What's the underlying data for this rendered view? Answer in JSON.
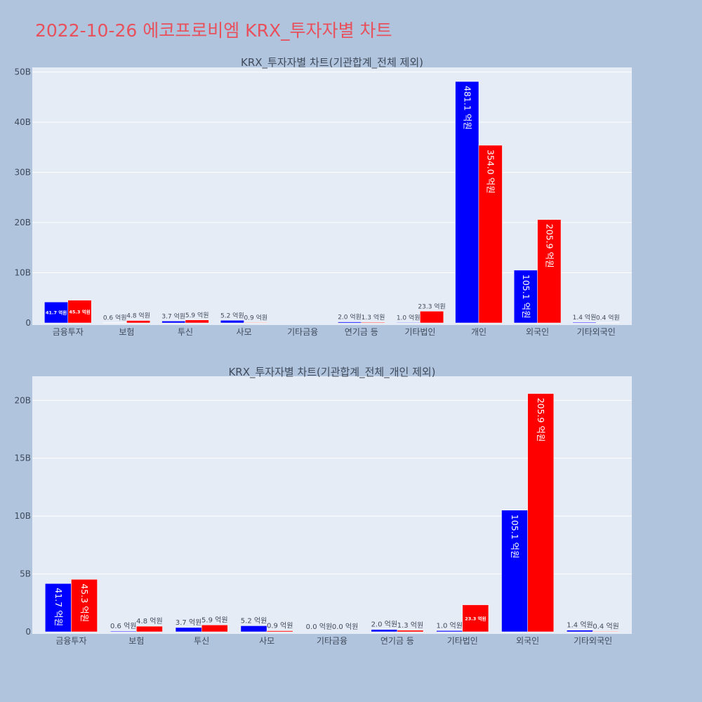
{
  "page": {
    "title": "2022-10-26 에코프로비엠 KRX_투자자별 차트",
    "title_color": "#e8505b",
    "background": "#b0c4de",
    "plot_background": "#e5ecf6"
  },
  "chart_data": [
    {
      "type": "bar",
      "title": "KRX_투자자별 차트(기관합계_전체 제외)",
      "categories": [
        "금융투자",
        "보험",
        "투신",
        "사모",
        "기타금융",
        "연기금 등",
        "기타법인",
        "개인",
        "외국인",
        "기타외국인"
      ],
      "y_ticks": [
        "0",
        "10B",
        "20B",
        "30B",
        "40B",
        "50B"
      ],
      "ylim": [
        0,
        50.5
      ],
      "grid": true,
      "series": [
        {
          "color": "#0000ff",
          "values": [
            4.17,
            0.06,
            0.37,
            0.52,
            0,
            0.2,
            0.1,
            48.11,
            10.51,
            0.14
          ],
          "labels": [
            "41.7 억원",
            "0.6 억원",
            "3.7 억원",
            "5.2 억원",
            "",
            "2.0 억원",
            "1.0 억원",
            "481.1 억원",
            "105.1 억원",
            "1.4 억원"
          ]
        },
        {
          "color": "#ff0000",
          "values": [
            4.53,
            0.48,
            0.59,
            0.09,
            0,
            0.13,
            2.33,
            35.4,
            20.59,
            0.04
          ],
          "labels": [
            "45.3 억원",
            "4.8 억원",
            "5.9 억원",
            "0.9 억원",
            "",
            "1.3 억원",
            "23.3 억원",
            "354.0 억원",
            "205.9 억원",
            "0.4 억원"
          ]
        }
      ]
    },
    {
      "type": "bar",
      "title": "KRX_투자자별 차트(기관합계_전체_개인 제외)",
      "categories": [
        "금융투자",
        "보험",
        "투신",
        "사모",
        "기타금융",
        "연기금 등",
        "기타법인",
        "외국인",
        "기타외국인"
      ],
      "y_ticks": [
        "0",
        "5B",
        "10B",
        "15B",
        "20B"
      ],
      "ylim": [
        0,
        21.9
      ],
      "grid": true,
      "series": [
        {
          "color": "#0000ff",
          "values": [
            4.17,
            0.06,
            0.37,
            0.52,
            0,
            0.2,
            0.1,
            10.51,
            0.14
          ],
          "labels": [
            "41.7 억원",
            "0.6 억원",
            "3.7 억원",
            "5.2 억원",
            "0.0 억원",
            "2.0 억원",
            "1.0 억원",
            "105.1 억원",
            "1.4 억원"
          ]
        },
        {
          "color": "#ff0000",
          "values": [
            4.53,
            0.48,
            0.59,
            0.09,
            0,
            0.13,
            2.33,
            20.59,
            0.04
          ],
          "labels": [
            "45.3 억원",
            "4.8 억원",
            "5.9 억원",
            "0.9 억원",
            "0.0 억원",
            "1.3 억원",
            "23.3 억원",
            "205.9 억원",
            "0.4 억원"
          ]
        }
      ]
    }
  ]
}
